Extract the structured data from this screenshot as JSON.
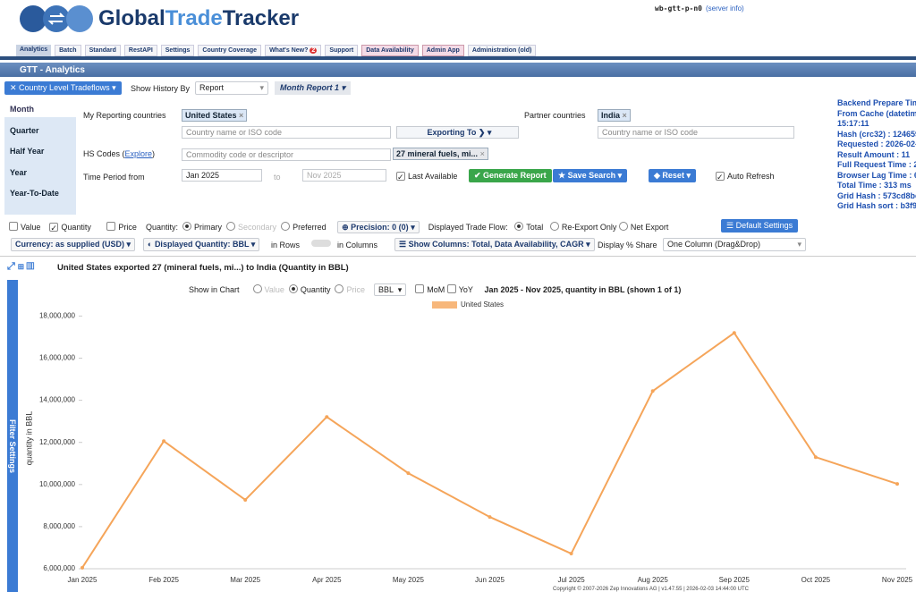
{
  "header": {
    "logo": [
      "Global",
      "Trade",
      "Tracker"
    ],
    "server": "wb-gtt-p-n0",
    "server_info": "(server info)"
  },
  "tabs": [
    "Analytics",
    "Batch",
    "Standard",
    "RestAPI",
    "Settings",
    "Country Coverage",
    "What's New?",
    "Support",
    "Data Availability",
    "Admin App",
    "Administration (old)"
  ],
  "whats_new_badge": 2,
  "section_title": "GTT - Analytics",
  "toolbar": {
    "flow": "Country Level Tradeflows",
    "history_label": "Show History By",
    "history_value": "Report",
    "report": "Month Report 1"
  },
  "periods": [
    "Month",
    "Quarter",
    "Half Year",
    "Year",
    "Year-To-Date"
  ],
  "form": {
    "reporting_label": "My Reporting countries",
    "reporting_value": "United States",
    "reporting_placeholder": "Country name or ISO code",
    "direction": "Exporting To",
    "partner_label": "Partner countries",
    "partner_value": "India",
    "partner_placeholder": "Country name or ISO code",
    "hs_label": "HS Codes (",
    "hs_explore": "Explore",
    "hs_close": ")",
    "hs_placeholder": "Commodity code or descriptor",
    "hs_value": "27 mineral fuels, mi...",
    "period_label": "Time Period from",
    "period_from": "Jan 2025",
    "period_to_label": "to",
    "period_to": "Nov 2025",
    "last_available": "Last Available",
    "generate": "Generate Report",
    "save": "Save Search",
    "reset": "Reset",
    "auto_refresh": "Auto Refresh"
  },
  "side_info": [
    "Backend Prepare Tim",
    "From Cache (datetim",
    "15:17:11",
    "Hash (crc32) : 124659",
    "Requested : 2026-02-",
    "Result Amount : 11",
    "Full Request Time : 2",
    "Browser Lag Time : 6",
    "Total Time : 313 ms",
    "Grid Hash : 573cd8bc",
    "Grid Hash sort : b3f9"
  ],
  "options": {
    "value": "Value",
    "quantity": "Quantity",
    "price": "Price",
    "quantity_label": "Quantity:",
    "primary": "Primary",
    "secondary": "Secondary",
    "preferred": "Preferred",
    "precision": "Precision: 0 (0)",
    "flow_label": "Displayed Trade Flow:",
    "total": "Total",
    "reexport": "Re-Export Only",
    "net_export": "Net Export",
    "default_settings": "Default Settings",
    "currency": "Currency: as supplied (USD)",
    "displayed_quantity": "Displayed Quantity: BBL",
    "in_rows": "in Rows",
    "in_columns": "in Columns",
    "show_columns": "Show Columns: Total, Data Availability, CAGR",
    "display_share_label": "Display % Share",
    "display_share": "One Column (Drag&Drop)"
  },
  "result_title": "United States exported 27 (mineral fuels, mi...) to India (Quantity in BBL)",
  "chart_controls": {
    "show_in_chart": "Show in Chart",
    "value": "Value",
    "quantity": "Quantity",
    "price": "Price",
    "unit": "BBL",
    "mom": "MoM",
    "yoy": "YoY",
    "summary": "Jan 2025 - Nov 2025, quantity in BBL (shown 1 of 1)"
  },
  "filter_settings": "Filter Settings",
  "chart_data": {
    "type": "line",
    "y_label": "quantity in BBL",
    "categories": [
      "Jan 2025",
      "Feb 2025",
      "Mar 2025",
      "Apr 2025",
      "May 2025",
      "Jun 2025",
      "Jul 2025",
      "Aug 2025",
      "Sep 2025",
      "Oct 2025",
      "Nov 2025"
    ],
    "series": [
      {
        "name": "United States",
        "color": "#f5a55a",
        "values": [
          6050000,
          12060000,
          9270000,
          13210000,
          10540000,
          8460000,
          6720000,
          14440000,
          17200000,
          11300000,
          10030000
        ]
      }
    ],
    "ylim": [
      6000000,
      18400000
    ],
    "yticks": [
      {
        "value": 6000000,
        "label": "6,000,000"
      },
      {
        "value": 8000000,
        "label": "8,000,000"
      },
      {
        "value": 10000000,
        "label": "10,000,000"
      },
      {
        "value": 12000000,
        "label": "12,000,000"
      },
      {
        "value": 14000000,
        "label": "14,000,000"
      },
      {
        "value": 16000000,
        "label": "16,000,000"
      },
      {
        "value": 18000000,
        "label": "18,000,000"
      }
    ],
    "grid": false
  },
  "copyright": "Copyright © 2007-2026 Zep Innovations AG | v1.47.55 | 2026-02-03 14:44:00 UTC"
}
